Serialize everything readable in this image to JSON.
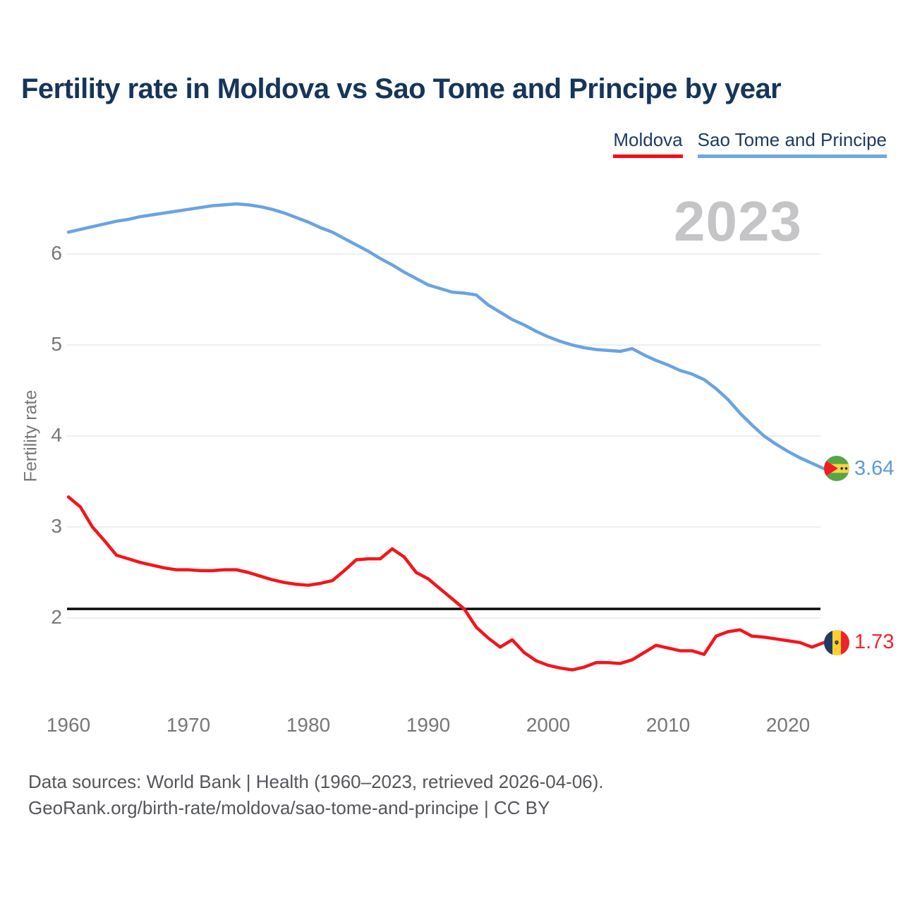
{
  "title": "Fertility rate in Moldova vs Sao Tome and Principe by year",
  "watermark": "2023",
  "legend": {
    "items": [
      {
        "label": "Moldova",
        "color": "#f60d17"
      },
      {
        "label": "Sao Tome and Principe",
        "color": "#6fa8dc"
      }
    ]
  },
  "chart_data": {
    "type": "line",
    "title": "Fertility rate in Moldova vs Sao Tome and Principe by year",
    "xlabel": "",
    "ylabel": "Fertility rate",
    "ylim": [
      1.3,
      6.7
    ],
    "grid": true,
    "legend_position": "top-right",
    "reference_line": 2.1,
    "yticks": [
      6,
      5,
      4,
      3,
      2
    ],
    "xticks": [
      1960,
      1970,
      1980,
      1990,
      2000,
      2010,
      2020
    ],
    "x": [
      1960,
      1961,
      1962,
      1963,
      1964,
      1965,
      1966,
      1967,
      1968,
      1969,
      1970,
      1971,
      1972,
      1973,
      1974,
      1975,
      1976,
      1977,
      1978,
      1979,
      1980,
      1981,
      1982,
      1983,
      1984,
      1985,
      1986,
      1987,
      1988,
      1989,
      1990,
      1991,
      1992,
      1993,
      1994,
      1995,
      1996,
      1997,
      1998,
      1999,
      2000,
      2001,
      2002,
      2003,
      2004,
      2005,
      2006,
      2007,
      2008,
      2009,
      2010,
      2011,
      2012,
      2013,
      2014,
      2015,
      2016,
      2017,
      2018,
      2019,
      2020,
      2021,
      2022,
      2023
    ],
    "series": [
      {
        "name": "Sao Tome and Principe",
        "color": "#69a3e3",
        "end_label": "3.64",
        "end_value": 3.64,
        "values": [
          6.24,
          6.27,
          6.3,
          6.33,
          6.36,
          6.38,
          6.41,
          6.43,
          6.45,
          6.47,
          6.49,
          6.51,
          6.53,
          6.54,
          6.55,
          6.54,
          6.52,
          6.49,
          6.45,
          6.4,
          6.35,
          6.29,
          6.24,
          6.17,
          6.1,
          6.03,
          5.95,
          5.88,
          5.8,
          5.73,
          5.66,
          5.62,
          5.58,
          5.57,
          5.55,
          5.44,
          5.36,
          5.28,
          5.22,
          5.15,
          5.09,
          5.04,
          5.0,
          4.97,
          4.95,
          4.94,
          4.93,
          4.96,
          4.89,
          4.83,
          4.78,
          4.72,
          4.68,
          4.62,
          4.52,
          4.4,
          4.25,
          4.12,
          4.0,
          3.91,
          3.83,
          3.76,
          3.7,
          3.64
        ]
      },
      {
        "name": "Moldova",
        "color": "#f5141b",
        "end_label": "1.73",
        "end_value": 1.73,
        "values": [
          3.33,
          3.22,
          3.0,
          2.85,
          2.69,
          2.65,
          2.61,
          2.58,
          2.55,
          2.53,
          2.53,
          2.52,
          2.52,
          2.53,
          2.53,
          2.5,
          2.46,
          2.42,
          2.39,
          2.37,
          2.36,
          2.38,
          2.41,
          2.52,
          2.64,
          2.65,
          2.65,
          2.76,
          2.67,
          2.5,
          2.43,
          2.32,
          2.21,
          2.1,
          1.9,
          1.78,
          1.68,
          1.76,
          1.62,
          1.53,
          1.48,
          1.45,
          1.43,
          1.46,
          1.51,
          1.51,
          1.5,
          1.54,
          1.62,
          1.7,
          1.67,
          1.64,
          1.64,
          1.6,
          1.8,
          1.85,
          1.87,
          1.8,
          1.79,
          1.77,
          1.75,
          1.73,
          1.68,
          1.73
        ]
      }
    ]
  },
  "footer": {
    "line1": "Data sources: World Bank | Health (1960–2023, retrieved 2026-04-06).",
    "line2": "GeoRank.org/birth-rate/moldova/sao-tome-and-principe | CC BY"
  }
}
